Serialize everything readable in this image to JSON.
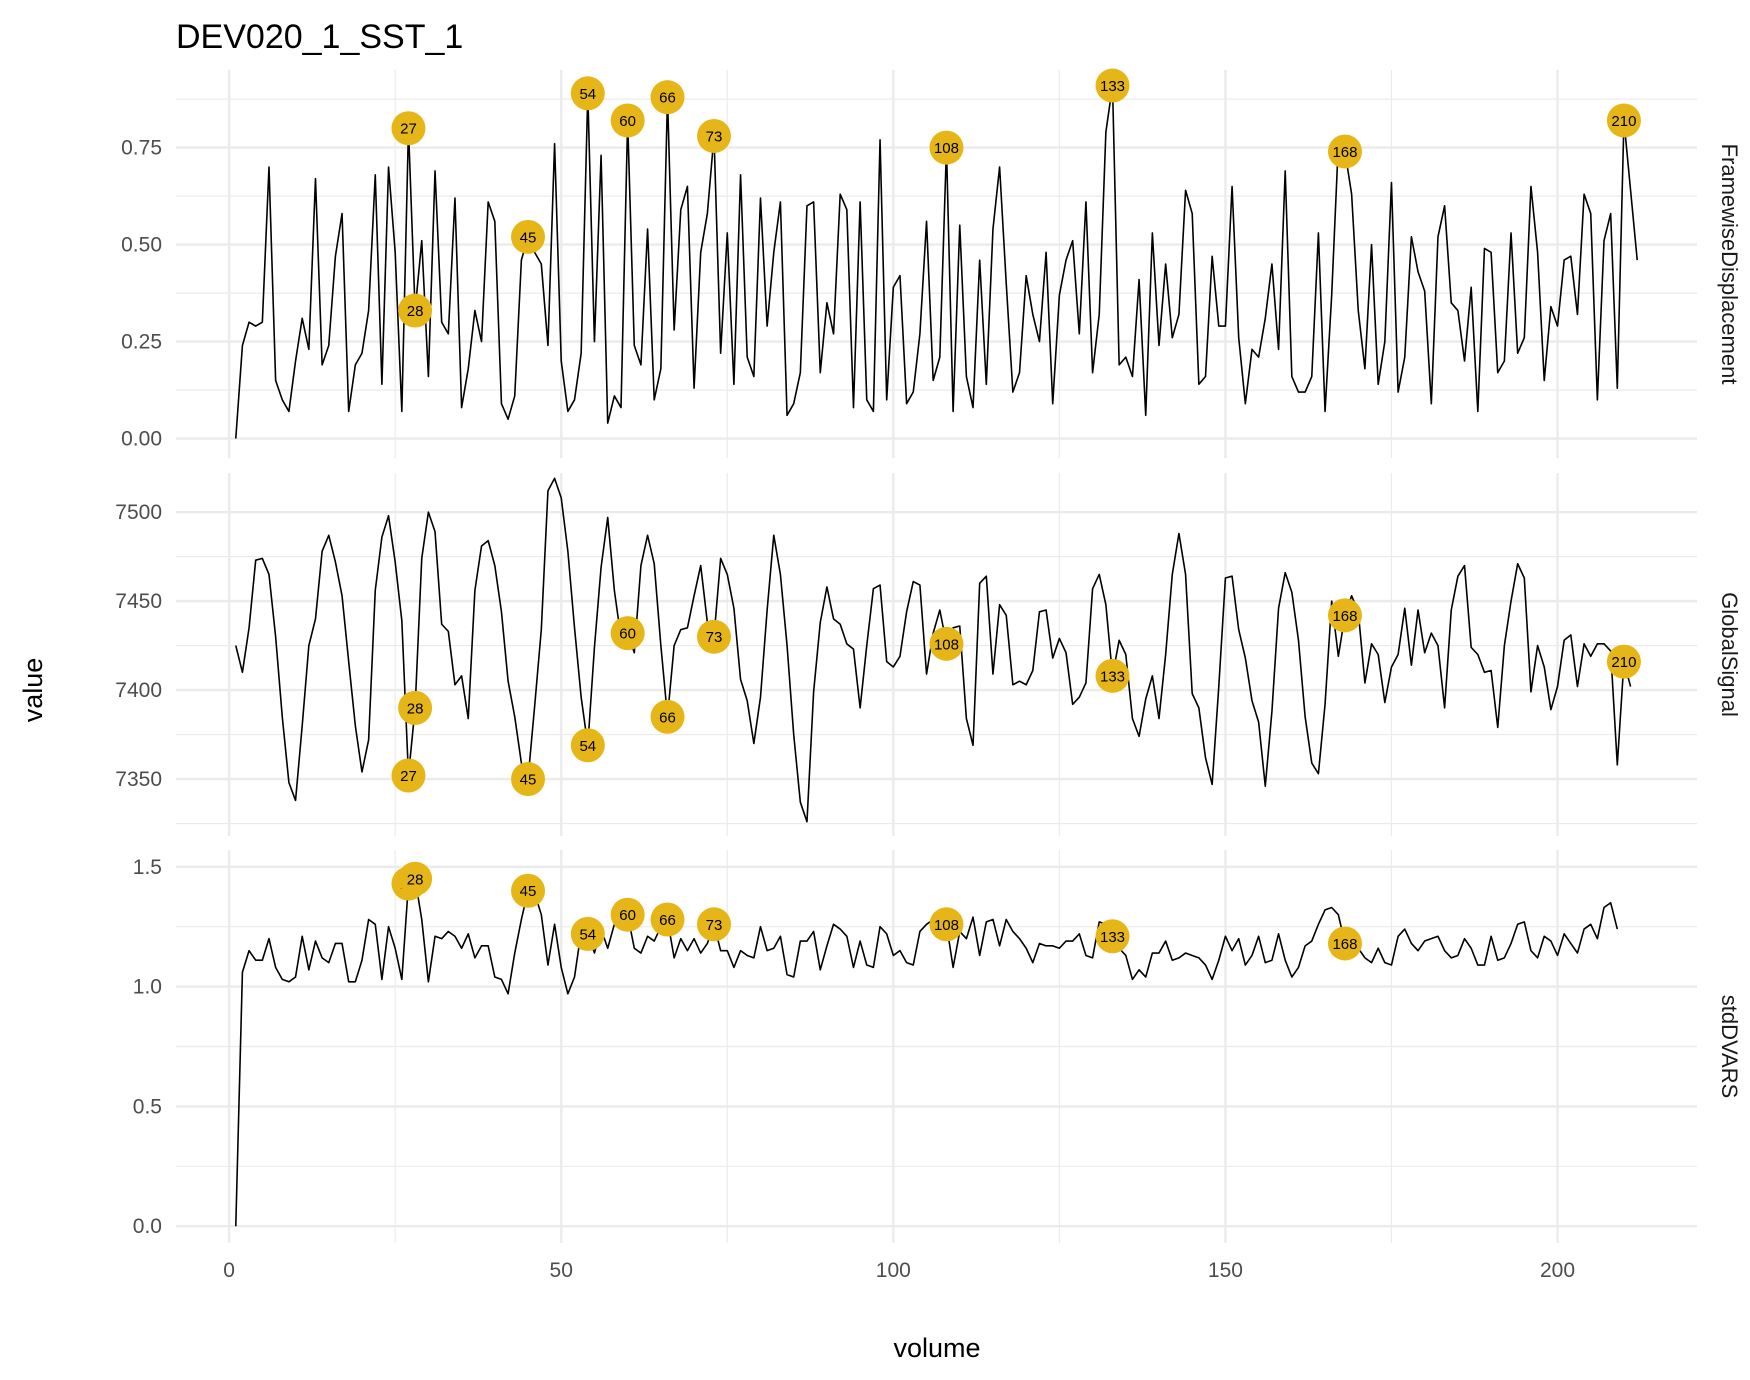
{
  "chart_data": {
    "type": "line",
    "title": "DEV020_1_SST_1",
    "xlabel": "volume",
    "ylabel": "value",
    "xlim": [
      -8,
      221
    ],
    "x_ticks": [
      0,
      50,
      100,
      150,
      200
    ],
    "grid": true,
    "legend": "none",
    "colors": {
      "line": "#000000",
      "marker": "#E6B619",
      "grid": "#EBEBEB"
    },
    "flagged_volumes": [
      27,
      28,
      45,
      54,
      60,
      66,
      73,
      108,
      133,
      168,
      210
    ],
    "panels": [
      {
        "strip": "FramewiseDisplacement",
        "ylim": [
          -0.05,
          0.95
        ],
        "y_ticks": [
          0,
          0.25,
          0.5,
          0.75
        ],
        "y_tick_labels": [
          "0.00",
          "0.25",
          "0.50",
          "0.75"
        ],
        "y0": 1,
        "values": [
          0.0,
          0.24,
          0.3,
          0.29,
          0.3,
          0.7,
          0.15,
          0.1,
          0.07,
          0.2,
          0.31,
          0.23,
          0.67,
          0.19,
          0.24,
          0.47,
          0.58,
          0.07,
          0.19,
          0.22,
          0.33,
          0.68,
          0.14,
          0.7,
          0.48,
          0.07,
          0.8,
          0.33,
          0.51,
          0.16,
          0.69,
          0.3,
          0.27,
          0.62,
          0.08,
          0.18,
          0.33,
          0.25,
          0.61,
          0.56,
          0.09,
          0.05,
          0.11,
          0.46,
          0.52,
          0.48,
          0.45,
          0.24,
          0.76,
          0.2,
          0.07,
          0.1,
          0.22,
          0.89,
          0.25,
          0.73,
          0.04,
          0.11,
          0.08,
          0.82,
          0.24,
          0.19,
          0.54,
          0.1,
          0.18,
          0.88,
          0.28,
          0.59,
          0.65,
          0.13,
          0.48,
          0.58,
          0.78,
          0.22,
          0.53,
          0.14,
          0.68,
          0.21,
          0.16,
          0.62,
          0.29,
          0.48,
          0.61,
          0.06,
          0.09,
          0.17,
          0.6,
          0.61,
          0.17,
          0.35,
          0.27,
          0.63,
          0.59,
          0.08,
          0.61,
          0.1,
          0.07,
          0.77,
          0.1,
          0.39,
          0.42,
          0.09,
          0.12,
          0.27,
          0.56,
          0.15,
          0.21,
          0.75,
          0.07,
          0.55,
          0.16,
          0.08,
          0.46,
          0.14,
          0.54,
          0.7,
          0.4,
          0.12,
          0.17,
          0.42,
          0.32,
          0.25,
          0.48,
          0.09,
          0.37,
          0.46,
          0.51,
          0.27,
          0.61,
          0.17,
          0.32,
          0.79,
          0.91,
          0.19,
          0.21,
          0.16,
          0.41,
          0.06,
          0.53,
          0.24,
          0.45,
          0.26,
          0.32,
          0.64,
          0.58,
          0.14,
          0.16,
          0.47,
          0.29,
          0.29,
          0.65,
          0.26,
          0.09,
          0.23,
          0.21,
          0.31,
          0.45,
          0.23,
          0.69,
          0.16,
          0.12,
          0.12,
          0.16,
          0.53,
          0.07,
          0.37,
          0.76,
          0.74,
          0.63,
          0.33,
          0.18,
          0.5,
          0.14,
          0.25,
          0.66,
          0.12,
          0.21,
          0.52,
          0.43,
          0.38,
          0.09,
          0.52,
          0.6,
          0.35,
          0.33,
          0.2,
          0.39,
          0.07,
          0.49,
          0.48,
          0.17,
          0.2,
          0.53,
          0.22,
          0.26,
          0.65,
          0.48,
          0.15,
          0.34,
          0.29,
          0.46,
          0.47,
          0.32,
          0.63,
          0.58,
          0.1,
          0.51,
          0.58,
          0.13,
          0.82,
          0.64,
          0.46
        ]
      },
      {
        "strip": "GlobalSignal",
        "ylim": [
          7318,
          7522
        ],
        "y_ticks": [
          7350,
          7400,
          7450,
          7500
        ],
        "y_tick_labels": [
          "7350",
          "7400",
          "7450",
          "7500"
        ],
        "y0": 1,
        "values": [
          7425,
          7410,
          7435,
          7473,
          7474,
          7465,
          7430,
          7385,
          7348,
          7338,
          7380,
          7425,
          7440,
          7478,
          7487,
          7472,
          7453,
          7416,
          7380,
          7354,
          7372,
          7456,
          7486,
          7498,
          7472,
          7439,
          7352,
          7390,
          7474,
          7500,
          7489,
          7437,
          7433,
          7403,
          7408,
          7384,
          7456,
          7481,
          7484,
          7470,
          7444,
          7405,
          7385,
          7359,
          7350,
          7391,
          7434,
          7512,
          7519,
          7508,
          7478,
          7435,
          7396,
          7369,
          7424,
          7469,
          7497,
          7456,
          7429,
          7432,
          7421,
          7470,
          7487,
          7471,
          7425,
          7385,
          7425,
          7434,
          7435,
          7453,
          7470,
          7438,
          7430,
          7474,
          7465,
          7446,
          7406,
          7394,
          7370,
          7396,
          7445,
          7487,
          7465,
          7425,
          7375,
          7337,
          7326,
          7399,
          7438,
          7458,
          7440,
          7437,
          7426,
          7423,
          7390,
          7425,
          7457,
          7459,
          7416,
          7413,
          7419,
          7444,
          7461,
          7459,
          7409,
          7432,
          7445,
          7426,
          7435,
          7436,
          7384,
          7369,
          7460,
          7464,
          7409,
          7448,
          7442,
          7403,
          7405,
          7403,
          7411,
          7444,
          7445,
          7418,
          7429,
          7421,
          7392,
          7396,
          7404,
          7457,
          7465,
          7448,
          7408,
          7428,
          7420,
          7384,
          7374,
          7395,
          7408,
          7384,
          7420,
          7465,
          7488,
          7465,
          7398,
          7390,
          7362,
          7347,
          7402,
          7463,
          7464,
          7434,
          7418,
          7394,
          7382,
          7346,
          7388,
          7446,
          7466,
          7455,
          7428,
          7385,
          7359,
          7353,
          7392,
          7450,
          7419,
          7442,
          7453,
          7444,
          7404,
          7426,
          7420,
          7393,
          7413,
          7420,
          7446,
          7414,
          7445,
          7421,
          7432,
          7425,
          7390,
          7445,
          7464,
          7470,
          7424,
          7420,
          7410,
          7411,
          7379,
          7425,
          7450,
          7471,
          7463,
          7399,
          7425,
          7413,
          7389,
          7402,
          7428,
          7431,
          7402,
          7426,
          7419,
          7426,
          7426,
          7422,
          7358,
          7416,
          7402
        ]
      },
      {
        "strip": "stdDVARS",
        "ylim": [
          -0.07,
          1.57
        ],
        "y_ticks": [
          0,
          0.5,
          1,
          1.5
        ],
        "y_tick_labels": [
          "0.0",
          "0.5",
          "1.0",
          "1.5"
        ],
        "y0": 1,
        "values": [
          0.0,
          1.06,
          1.15,
          1.11,
          1.11,
          1.2,
          1.08,
          1.03,
          1.02,
          1.04,
          1.21,
          1.07,
          1.19,
          1.12,
          1.1,
          1.18,
          1.18,
          1.02,
          1.02,
          1.11,
          1.28,
          1.26,
          1.03,
          1.25,
          1.16,
          1.03,
          1.43,
          1.45,
          1.28,
          1.02,
          1.21,
          1.2,
          1.23,
          1.21,
          1.16,
          1.22,
          1.12,
          1.17,
          1.17,
          1.04,
          1.03,
          0.97,
          1.14,
          1.28,
          1.4,
          1.39,
          1.3,
          1.09,
          1.26,
          1.08,
          0.97,
          1.04,
          1.23,
          1.22,
          1.14,
          1.24,
          1.16,
          1.26,
          1.28,
          1.3,
          1.16,
          1.14,
          1.21,
          1.19,
          1.25,
          1.28,
          1.12,
          1.2,
          1.15,
          1.2,
          1.14,
          1.18,
          1.26,
          1.15,
          1.15,
          1.08,
          1.15,
          1.13,
          1.12,
          1.25,
          1.15,
          1.16,
          1.21,
          1.05,
          1.04,
          1.19,
          1.19,
          1.23,
          1.07,
          1.17,
          1.26,
          1.24,
          1.21,
          1.08,
          1.19,
          1.09,
          1.08,
          1.25,
          1.22,
          1.13,
          1.15,
          1.1,
          1.09,
          1.23,
          1.26,
          1.28,
          1.27,
          1.26,
          1.08,
          1.23,
          1.2,
          1.29,
          1.13,
          1.27,
          1.28,
          1.17,
          1.28,
          1.23,
          1.2,
          1.16,
          1.1,
          1.18,
          1.17,
          1.17,
          1.16,
          1.19,
          1.19,
          1.22,
          1.13,
          1.12,
          1.27,
          1.26,
          1.21,
          1.16,
          1.13,
          1.03,
          1.07,
          1.04,
          1.14,
          1.14,
          1.19,
          1.11,
          1.12,
          1.14,
          1.13,
          1.12,
          1.09,
          1.03,
          1.11,
          1.21,
          1.15,
          1.2,
          1.09,
          1.13,
          1.21,
          1.1,
          1.11,
          1.22,
          1.11,
          1.04,
          1.08,
          1.17,
          1.19,
          1.26,
          1.32,
          1.33,
          1.3,
          1.18,
          1.15,
          1.16,
          1.12,
          1.1,
          1.16,
          1.1,
          1.09,
          1.21,
          1.24,
          1.18,
          1.15,
          1.19,
          1.2,
          1.21,
          1.15,
          1.12,
          1.13,
          1.2,
          1.16,
          1.09,
          1.09,
          1.21,
          1.11,
          1.12,
          1.18,
          1.26,
          1.27,
          1.15,
          1.12,
          1.21,
          1.19,
          1.13,
          1.22,
          1.18,
          1.14,
          1.24,
          1.26,
          1.2,
          1.33,
          1.35,
          1.24
        ]
      }
    ]
  }
}
